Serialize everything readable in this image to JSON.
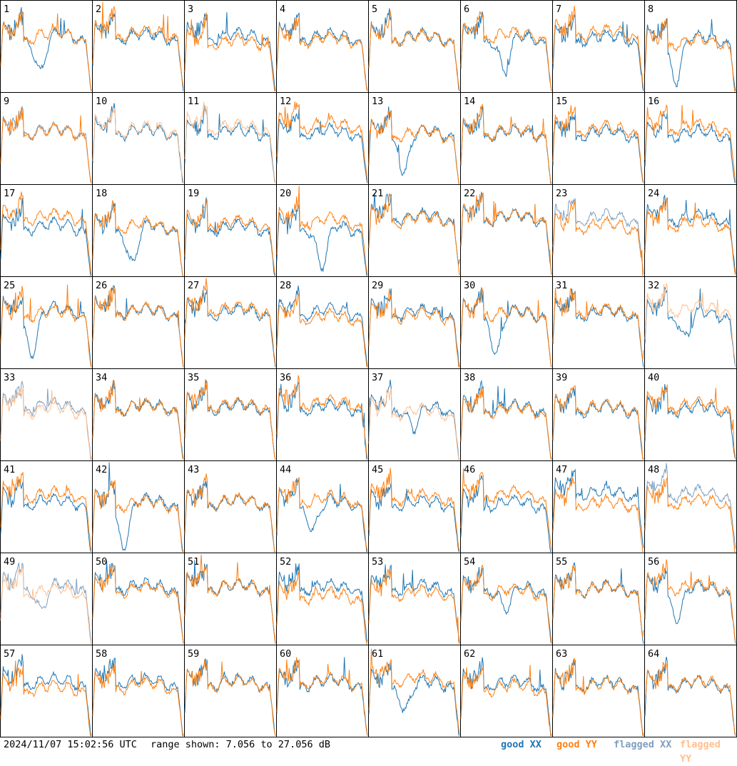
{
  "footer": {
    "timestamp": "2024/11/07 15:02:56 UTC",
    "range_text": "range shown: 7.056 to 27.056 dB"
  },
  "legend": [
    {
      "label": "good XX",
      "color": "#1f77b4"
    },
    {
      "label": "good YY",
      "color": "#ff7f0e"
    },
    {
      "label": "flagged XX",
      "color": "#7f9fbf"
    },
    {
      "label": "flagged YY",
      "color": "#ffbf8f"
    }
  ],
  "chart_data": {
    "type": "line",
    "layout": "small multiples 8x8",
    "panels": [
      "1",
      "2",
      "3",
      "4",
      "5",
      "6",
      "7",
      "8",
      "9",
      "10",
      "11",
      "12",
      "13",
      "14",
      "15",
      "16",
      "17",
      "18",
      "19",
      "20",
      "21",
      "22",
      "23",
      "24",
      "25",
      "26",
      "27",
      "28",
      "29",
      "30",
      "31",
      "32",
      "33",
      "34",
      "35",
      "36",
      "37",
      "38",
      "39",
      "40",
      "41",
      "42",
      "43",
      "44",
      "45",
      "46",
      "47",
      "48",
      "49",
      "50",
      "51",
      "52",
      "53",
      "54",
      "55",
      "56",
      "57",
      "58",
      "59",
      "60",
      "61",
      "62",
      "63",
      "64"
    ],
    "ylim": [
      7.056,
      27.056
    ],
    "yunit": "dB",
    "series": [
      "good XX",
      "good YY",
      "flagged XX",
      "flagged YY"
    ],
    "panel_status": {
      "flagged_xx": [
        9,
        23,
        33,
        48,
        49
      ],
      "flagged_yy": [
        10,
        11,
        32,
        33,
        37,
        49
      ]
    },
    "grid": false
  }
}
